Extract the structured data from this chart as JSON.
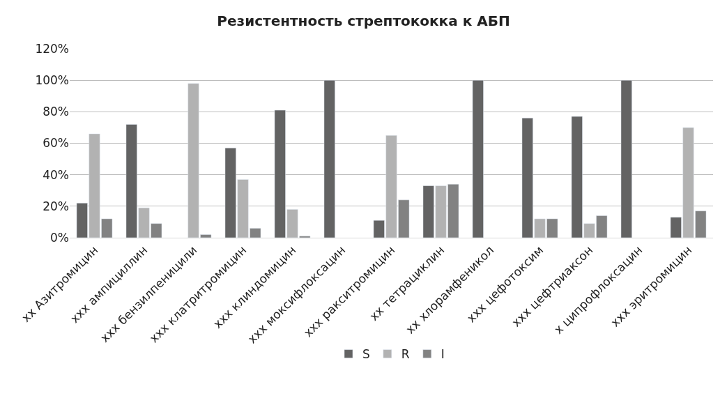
{
  "chart_data": {
    "type": "bar",
    "title": "Резистентность стрептококка к АБП",
    "categories": [
      "xx Азитромицин",
      "xxx ампициллин",
      "xxx бензилпеницили",
      "xxx клатритромицин",
      "xxx клиндомицин",
      "xxx моксифлоксацин",
      "xxx ракситромицин",
      "xx тетрациклин",
      "xx хлорамфеникол",
      "xxx цефотоксим",
      "xxx цефтриаксон",
      "x ципрофлоксацин",
      "xxx эритромицин"
    ],
    "series": [
      {
        "name": "S",
        "color": "#636363",
        "values": [
          22,
          72,
          null,
          57,
          81,
          100,
          11,
          33,
          100,
          76,
          77,
          100,
          13
        ]
      },
      {
        "name": "R",
        "color": "#b2b2b2",
        "values": [
          66,
          19,
          98,
          37,
          18,
          null,
          65,
          33,
          null,
          12,
          9,
          null,
          70
        ]
      },
      {
        "name": "I",
        "color": "#828282",
        "values": [
          12,
          9,
          2,
          6,
          1,
          null,
          24,
          34,
          null,
          12,
          14,
          null,
          17
        ]
      }
    ],
    "ylim": [
      0,
      120
    ],
    "yticks": [
      {
        "value": 0,
        "label": "0%"
      },
      {
        "value": 20,
        "label": "20%"
      },
      {
        "value": 40,
        "label": "40%"
      },
      {
        "value": 60,
        "label": "60%"
      },
      {
        "value": 80,
        "label": "80%"
      },
      {
        "value": 100,
        "label": "100%"
      },
      {
        "value": 120,
        "label": "120%"
      }
    ],
    "grid": "y",
    "legend": "bottom"
  }
}
